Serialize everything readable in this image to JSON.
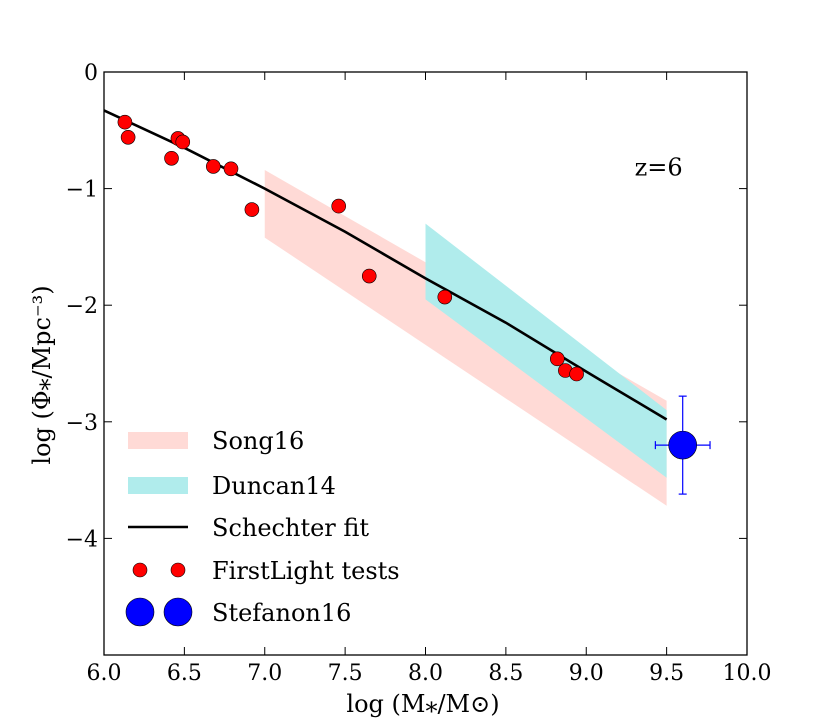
{
  "chart_data": {
    "type": "scatter",
    "title": "",
    "xlabel": "log (M⁎/M⊙)",
    "ylabel": "log (Φ⁎/Mpc⁻³)",
    "xlim": [
      6.0,
      10.0
    ],
    "ylim": [
      -5.0,
      0.0
    ],
    "x_ticks": [
      6.0,
      6.5,
      7.0,
      7.5,
      8.0,
      8.5,
      9.0,
      9.5,
      10.0
    ],
    "x_tick_labels": [
      "6.0",
      "6.5",
      "7.0",
      "7.5",
      "8.0",
      "8.5",
      "9.0",
      "9.5",
      "10.0"
    ],
    "y_ticks": [
      0,
      -1,
      -2,
      -3,
      -4
    ],
    "y_tick_labels": [
      "0",
      "−1",
      "−2",
      "−3",
      "−4"
    ],
    "grid": false,
    "legend_position": "lower-left",
    "annotations": [
      {
        "text": "z=6",
        "x": 9.45,
        "y": -0.82
      }
    ],
    "series": [
      {
        "name": "Song16",
        "kind": "band",
        "color": "#ffdad6",
        "polygon": [
          [
            7.0,
            -0.84
          ],
          [
            9.5,
            -2.82
          ],
          [
            9.5,
            -3.72
          ],
          [
            7.0,
            -1.42
          ]
        ]
      },
      {
        "name": "Duncan14",
        "kind": "band",
        "color": "#b0ecec",
        "polygon": [
          [
            8.0,
            -1.3
          ],
          [
            9.5,
            -2.9
          ],
          [
            9.5,
            -3.48
          ],
          [
            8.0,
            -1.95
          ]
        ]
      },
      {
        "name": "Schechter fit",
        "kind": "line",
        "color": "#000000",
        "x": [
          6.0,
          6.5,
          7.0,
          7.5,
          8.0,
          8.5,
          9.0,
          9.5
        ],
        "y": [
          -0.33,
          -0.65,
          -1.0,
          -1.37,
          -1.77,
          -2.15,
          -2.57,
          -2.98
        ]
      },
      {
        "name": "FirstLight tests",
        "kind": "scatter",
        "color": "#ff0000",
        "x": [
          6.13,
          6.15,
          6.42,
          6.46,
          6.49,
          6.68,
          6.79,
          6.92,
          7.46,
          7.65,
          8.12,
          8.82,
          8.87,
          8.94
        ],
        "y": [
          -0.43,
          -0.56,
          -0.74,
          -0.57,
          -0.6,
          -0.81,
          -0.83,
          -1.18,
          -1.15,
          -1.75,
          -1.93,
          -2.46,
          -2.56,
          -2.59
        ]
      },
      {
        "name": "Stefanon16",
        "kind": "errorbar",
        "color": "#0000ff",
        "x": [
          9.6
        ],
        "y": [
          -3.2
        ],
        "xerr": [
          0.17
        ],
        "yerr": [
          0.42
        ]
      }
    ]
  }
}
